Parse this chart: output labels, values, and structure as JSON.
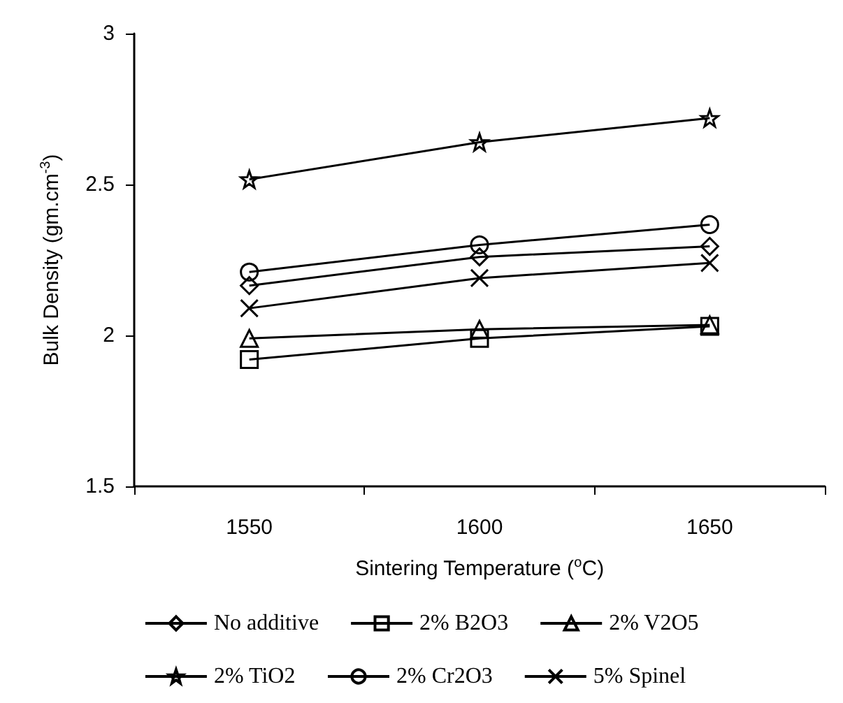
{
  "chart_data": {
    "type": "line",
    "xlabel": "Sintering Temperature ($^{o}$C)",
    "ylabel": "Bulk Density (gm.cm$^{-3}$)",
    "categories": [
      "1550",
      "1600",
      "1650"
    ],
    "ylim": [
      1.5,
      3
    ],
    "yticks": [
      1.5,
      2,
      2.5,
      3
    ],
    "grid": false,
    "legend": "bottom",
    "series": [
      {
        "name": "No additive",
        "color": "#000000",
        "marker": "diamond",
        "values": [
          2.165,
          2.26,
          2.295
        ]
      },
      {
        "name": "2% B2O3",
        "color": "#000000",
        "marker": "square",
        "values": [
          1.92,
          1.99,
          2.03
        ]
      },
      {
        "name": "2% V2O5",
        "color": "#000000",
        "marker": "triangle",
        "values": [
          1.99,
          2.02,
          2.035
        ]
      },
      {
        "name": "2% TiO2",
        "color": "#000000",
        "marker": "star",
        "values": [
          2.517,
          2.64,
          2.72
        ]
      },
      {
        "name": "2% Cr2O3",
        "color": "#000000",
        "marker": "circle",
        "values": [
          2.21,
          2.3,
          2.367
        ]
      },
      {
        "name": "5% Spinel",
        "color": "#000000",
        "marker": "cross",
        "values": [
          2.09,
          2.19,
          2.24
        ]
      }
    ]
  }
}
